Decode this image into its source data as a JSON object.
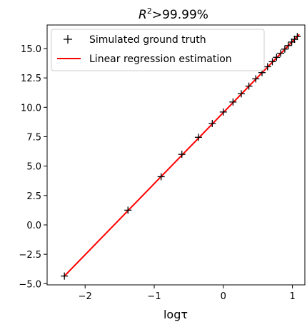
{
  "chart_data": {
    "type": "scatter",
    "title": {
      "prefix": "R",
      "superscript": "2",
      "suffix": ">99.99%"
    },
    "xlabel": "logτ",
    "ylabel": "",
    "xlim": [
      -2.55,
      1.18
    ],
    "ylim": [
      -5.1,
      17.0
    ],
    "x_ticks": [
      -2,
      -1,
      0,
      1
    ],
    "x_tick_labels": [
      "−2",
      "−1",
      "0",
      "1"
    ],
    "y_ticks": [
      -5.0,
      -2.5,
      0.0,
      2.5,
      5.0,
      7.5,
      10.0,
      12.5,
      15.0
    ],
    "y_tick_labels": [
      "−5.0",
      "−2.5",
      "0.0",
      "2.5",
      "5.0",
      "7.5",
      "10.0",
      "12.5",
      "15.0"
    ],
    "grid": false,
    "legend_position": "top-left",
    "series": [
      {
        "name": "Simulated ground truth",
        "marker": "+",
        "color": "#000000",
        "points": [
          {
            "x": -2.3,
            "y": -4.35
          },
          {
            "x": -1.38,
            "y": 1.25
          },
          {
            "x": -0.9,
            "y": 4.1
          },
          {
            "x": -0.6,
            "y": 6.0
          },
          {
            "x": -0.36,
            "y": 7.45
          },
          {
            "x": -0.16,
            "y": 8.62
          },
          {
            "x": 0.0,
            "y": 9.6
          },
          {
            "x": 0.14,
            "y": 10.45
          },
          {
            "x": 0.26,
            "y": 11.15
          },
          {
            "x": 0.37,
            "y": 11.8
          },
          {
            "x": 0.47,
            "y": 12.42
          },
          {
            "x": 0.56,
            "y": 12.95
          },
          {
            "x": 0.64,
            "y": 13.45
          },
          {
            "x": 0.71,
            "y": 13.88
          },
          {
            "x": 0.77,
            "y": 14.25
          },
          {
            "x": 0.83,
            "y": 14.6
          },
          {
            "x": 0.89,
            "y": 14.95
          },
          {
            "x": 0.94,
            "y": 15.25
          },
          {
            "x": 0.99,
            "y": 15.55
          },
          {
            "x": 1.03,
            "y": 15.78
          },
          {
            "x": 1.07,
            "y": 16.02
          }
        ]
      },
      {
        "name": "Linear regression estimation",
        "type": "line",
        "color": "#ff0000",
        "points": [
          {
            "x": -2.3,
            "y": -4.35
          },
          {
            "x": 1.1,
            "y": 16.2
          }
        ]
      }
    ]
  }
}
